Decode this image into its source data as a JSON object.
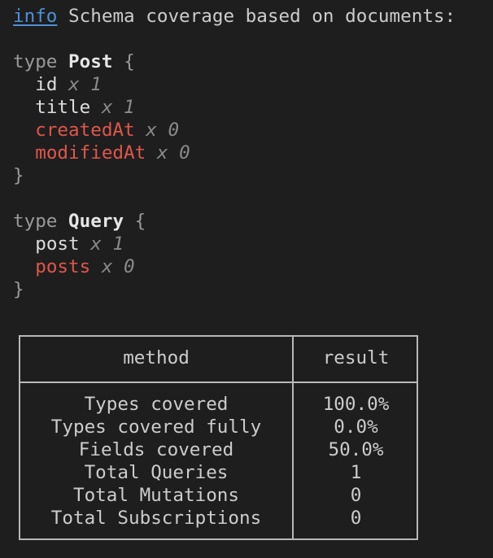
{
  "header": {
    "level": "info",
    "message": "Schema coverage based on documents:"
  },
  "types": [
    {
      "keyword": "type",
      "name": "Post",
      "fields": [
        {
          "name": "id",
          "count": "x 1",
          "covered": true
        },
        {
          "name": "title",
          "count": "x 1",
          "covered": true
        },
        {
          "name": "createdAt",
          "count": "x 0",
          "covered": false
        },
        {
          "name": "modifiedAt",
          "count": "x 0",
          "covered": false
        }
      ]
    },
    {
      "keyword": "type",
      "name": "Query",
      "fields": [
        {
          "name": "post",
          "count": "x 1",
          "covered": true
        },
        {
          "name": "posts",
          "count": "x 0",
          "covered": false
        }
      ]
    }
  ],
  "table": {
    "headers": [
      "method",
      "result"
    ],
    "rows": [
      [
        "Types covered",
        "100.0%"
      ],
      [
        "Types covered fully",
        "0.0%"
      ],
      [
        "Fields covered",
        "50.0%"
      ],
      [
        "Total Queries",
        "1"
      ],
      [
        "Total Mutations",
        "0"
      ],
      [
        "Total Subscriptions",
        "0"
      ]
    ]
  },
  "colors": {
    "background": "#1e1e1e",
    "info": "#4f8fd8",
    "uncovered": "#e0564b",
    "text": "#cccccc"
  }
}
